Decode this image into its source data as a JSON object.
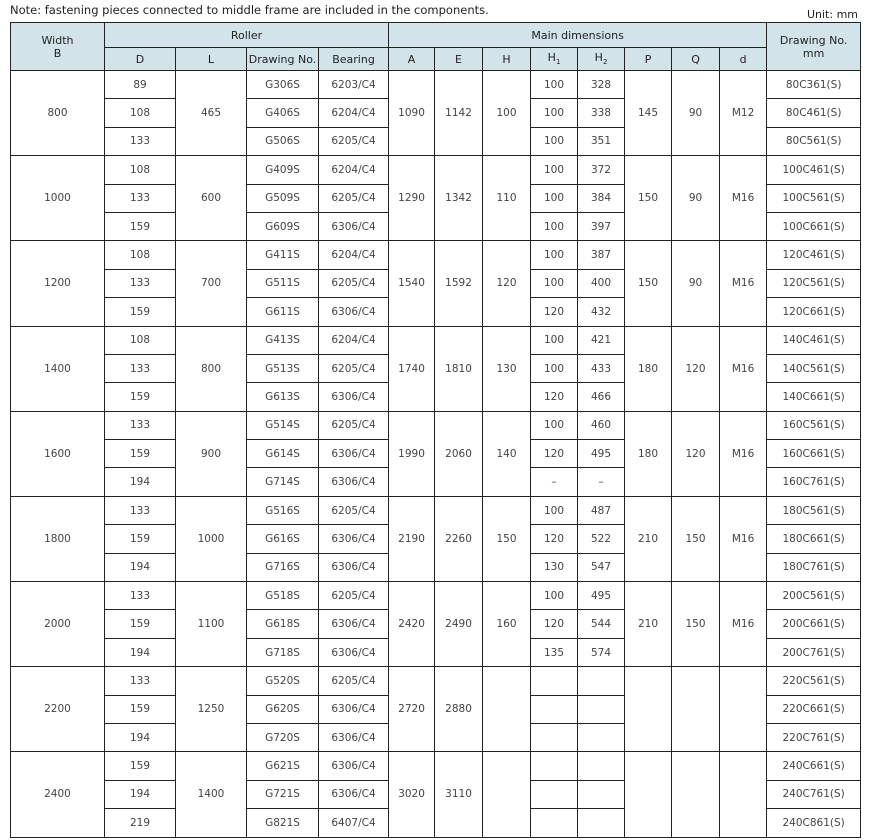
{
  "note": "Note: fastening pieces connected to middle frame are included in the components.",
  "unit": "Unit: mm",
  "header": {
    "width": "Width",
    "width_sub": "B",
    "roller": "Roller",
    "main_dimensions": "Main dimensions",
    "drawing_no": "Drawing No.",
    "drawing_no_unit": "mm",
    "cols": {
      "D": "D",
      "L": "L",
      "drawing": "Drawing No.",
      "bearing": "Bearing",
      "A": "A",
      "E": "E",
      "H": "H",
      "H1": "H",
      "H1_sub": "1",
      "H2": "H",
      "H2_sub": "2",
      "P": "P",
      "Q": "Q",
      "d": "d"
    }
  },
  "groups": [
    {
      "width": "800",
      "L": "465",
      "A": "1090",
      "E": "1142",
      "H": "100",
      "P": "145",
      "Q": "90",
      "d": "M12",
      "rows": [
        {
          "D": "89",
          "drawing": "G306S",
          "bearing": "6203/C4",
          "H1": "100",
          "H2": "328",
          "no": "80C361(S)"
        },
        {
          "D": "108",
          "drawing": "G406S",
          "bearing": "6204/C4",
          "H1": "100",
          "H2": "338",
          "no": "80C461(S)"
        },
        {
          "D": "133",
          "drawing": "G506S",
          "bearing": "6205/C4",
          "H1": "100",
          "H2": "351",
          "no": "80C561(S)"
        }
      ]
    },
    {
      "width": "1000",
      "L": "600",
      "A": "1290",
      "E": "1342",
      "H": "110",
      "P": "150",
      "Q": "90",
      "d": "M16",
      "rows": [
        {
          "D": "108",
          "drawing": "G409S",
          "bearing": "6204/C4",
          "H1": "100",
          "H2": "372",
          "no": "100C461(S)"
        },
        {
          "D": "133",
          "drawing": "G509S",
          "bearing": "6205/C4",
          "H1": "100",
          "H2": "384",
          "no": "100C561(S)"
        },
        {
          "D": "159",
          "drawing": "G609S",
          "bearing": "6306/C4",
          "H1": "100",
          "H2": "397",
          "no": "100C661(S)"
        }
      ]
    },
    {
      "width": "1200",
      "L": "700",
      "A": "1540",
      "E": "1592",
      "H": "120",
      "P": "150",
      "Q": "90",
      "d": "M16",
      "rows": [
        {
          "D": "108",
          "drawing": "G411S",
          "bearing": "6204/C4",
          "H1": "100",
          "H2": "387",
          "no": "120C461(S)"
        },
        {
          "D": "133",
          "drawing": "G511S",
          "bearing": "6205/C4",
          "H1": "100",
          "H2": "400",
          "no": "120C561(S)"
        },
        {
          "D": "159",
          "drawing": "G611S",
          "bearing": "6306/C4",
          "H1": "120",
          "H2": "432",
          "no": "120C661(S)"
        }
      ]
    },
    {
      "width": "1400",
      "L": "800",
      "A": "1740",
      "E": "1810",
      "H": "130",
      "P": "180",
      "Q": "120",
      "d": "M16",
      "rows": [
        {
          "D": "108",
          "drawing": "G413S",
          "bearing": "6204/C4",
          "H1": "100",
          "H2": "421",
          "no": "140C461(S)"
        },
        {
          "D": "133",
          "drawing": "G513S",
          "bearing": "6205/C4",
          "H1": "100",
          "H2": "433",
          "no": "140C561(S)"
        },
        {
          "D": "159",
          "drawing": "G613S",
          "bearing": "6306/C4",
          "H1": "120",
          "H2": "466",
          "no": "140C661(S)"
        }
      ]
    },
    {
      "width": "1600",
      "L": "900",
      "A": "1990",
      "E": "2060",
      "H": "140",
      "P": "180",
      "Q": "120",
      "d": "M16",
      "rows": [
        {
          "D": "133",
          "drawing": "G514S",
          "bearing": "6205/C4",
          "H1": "100",
          "H2": "460",
          "no": "160C561(S)"
        },
        {
          "D": "159",
          "drawing": "G614S",
          "bearing": "6306/C4",
          "H1": "120",
          "H2": "495",
          "no": "160C661(S)"
        },
        {
          "D": "194",
          "drawing": "G714S",
          "bearing": "6306/C4",
          "H1": "–",
          "H2": "–",
          "no": "160C761(S)"
        }
      ]
    },
    {
      "width": "1800",
      "L": "1000",
      "A": "2190",
      "E": "2260",
      "H": "150",
      "P": "210",
      "Q": "150",
      "d": "M16",
      "rows": [
        {
          "D": "133",
          "drawing": "G516S",
          "bearing": "6205/C4",
          "H1": "100",
          "H2": "487",
          "no": "180C561(S)"
        },
        {
          "D": "159",
          "drawing": "G616S",
          "bearing": "6306/C4",
          "H1": "120",
          "H2": "522",
          "no": "180C661(S)"
        },
        {
          "D": "194",
          "drawing": "G716S",
          "bearing": "6306/C4",
          "H1": "130",
          "H2": "547",
          "no": "180C761(S)"
        }
      ]
    },
    {
      "width": "2000",
      "L": "1100",
      "A": "2420",
      "E": "2490",
      "H": "160",
      "P": "210",
      "Q": "150",
      "d": "M16",
      "rows": [
        {
          "D": "133",
          "drawing": "G518S",
          "bearing": "6205/C4",
          "H1": "100",
          "H2": "495",
          "no": "200C561(S)"
        },
        {
          "D": "159",
          "drawing": "G618S",
          "bearing": "6306/C4",
          "H1": "120",
          "H2": "544",
          "no": "200C661(S)"
        },
        {
          "D": "194",
          "drawing": "G718S",
          "bearing": "6306/C4",
          "H1": "135",
          "H2": "574",
          "no": "200C761(S)"
        }
      ]
    },
    {
      "width": "2200",
      "L": "1250",
      "A": "2720",
      "E": "2880",
      "H": "",
      "P": "",
      "Q": "",
      "d": "",
      "rows": [
        {
          "D": "133",
          "drawing": "G520S",
          "bearing": "6205/C4",
          "H1": "",
          "H2": "",
          "no": "220C561(S)"
        },
        {
          "D": "159",
          "drawing": "G620S",
          "bearing": "6306/C4",
          "H1": "",
          "H2": "",
          "no": "220C661(S)"
        },
        {
          "D": "194",
          "drawing": "G720S",
          "bearing": "6306/C4",
          "H1": "",
          "H2": "",
          "no": "220C761(S)"
        }
      ]
    },
    {
      "width": "2400",
      "L": "1400",
      "A": "3020",
      "E": "3110",
      "H": "",
      "P": "",
      "Q": "",
      "d": "",
      "rows": [
        {
          "D": "159",
          "drawing": "G621S",
          "bearing": "6306/C4",
          "H1": "",
          "H2": "",
          "no": "240C661(S)"
        },
        {
          "D": "194",
          "drawing": "G721S",
          "bearing": "6306/C4",
          "H1": "",
          "H2": "",
          "no": "240C761(S)"
        },
        {
          "D": "219",
          "drawing": "G821S",
          "bearing": "6407/C4",
          "H1": "",
          "H2": "",
          "no": "240C861(S)"
        }
      ]
    }
  ]
}
